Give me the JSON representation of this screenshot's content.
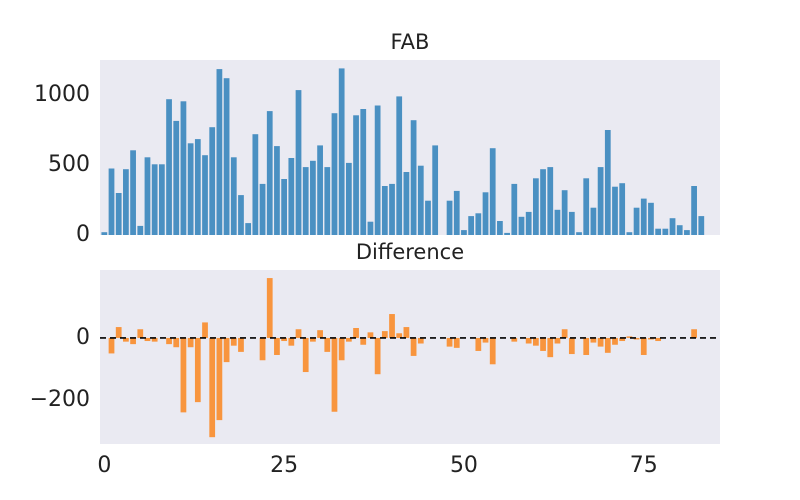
{
  "chart_data": [
    {
      "type": "bar",
      "title": "FAB",
      "color": "#4a90c2",
      "x": [
        0,
        1,
        2,
        3,
        4,
        5,
        6,
        7,
        8,
        9,
        10,
        11,
        12,
        13,
        14,
        15,
        16,
        17,
        18,
        19,
        20,
        21,
        22,
        23,
        24,
        25,
        26,
        27,
        28,
        29,
        30,
        31,
        32,
        33,
        34,
        35,
        36,
        37,
        38,
        39,
        40,
        41,
        42,
        43,
        44,
        45,
        46,
        47,
        48,
        49,
        50,
        51,
        52,
        53,
        54,
        55,
        56,
        57,
        58,
        59,
        60,
        61,
        62,
        63,
        64,
        65,
        66,
        67,
        68,
        69,
        70,
        71,
        72,
        73,
        74,
        75,
        76,
        77,
        78,
        79,
        80,
        81,
        82,
        83
      ],
      "values": [
        20,
        475,
        300,
        470,
        605,
        65,
        555,
        505,
        505,
        970,
        815,
        955,
        655,
        685,
        570,
        770,
        1185,
        1120,
        555,
        285,
        85,
        720,
        365,
        885,
        635,
        400,
        550,
        1035,
        485,
        530,
        640,
        485,
        870,
        1190,
        515,
        855,
        900,
        95,
        925,
        350,
        365,
        990,
        450,
        820,
        495,
        245,
        640,
        0,
        245,
        315,
        35,
        135,
        155,
        305,
        620,
        100,
        15,
        365,
        130,
        165,
        405,
        470,
        485,
        180,
        320,
        165,
        20,
        405,
        195,
        485,
        750,
        345,
        370,
        20,
        195,
        260,
        230,
        45,
        45,
        120,
        70,
        35,
        350,
        135
      ],
      "xlim": [
        -0.6,
        85.6
      ],
      "ylim": [
        0,
        1250
      ],
      "yticks": [
        0,
        500,
        1000
      ]
    },
    {
      "type": "bar",
      "title": "Difference",
      "color": "#f8953e",
      "hline": 0,
      "x": [
        0,
        1,
        2,
        3,
        4,
        5,
        6,
        7,
        8,
        9,
        10,
        11,
        12,
        13,
        14,
        15,
        16,
        17,
        18,
        19,
        20,
        21,
        22,
        23,
        24,
        25,
        26,
        27,
        28,
        29,
        30,
        31,
        32,
        33,
        34,
        35,
        36,
        37,
        38,
        39,
        40,
        41,
        42,
        43,
        44,
        45,
        46,
        47,
        48,
        49,
        50,
        51,
        52,
        53,
        54,
        55,
        56,
        57,
        58,
        59,
        60,
        61,
        62,
        63,
        64,
        65,
        66,
        67,
        68,
        69,
        70,
        71,
        72,
        73,
        74,
        75,
        76,
        77,
        78,
        79,
        80,
        81,
        82,
        83
      ],
      "values": [
        0,
        -50,
        35,
        -12,
        -20,
        28,
        -10,
        -12,
        0,
        -20,
        -30,
        -240,
        -30,
        -207,
        50,
        -320,
        -265,
        -78,
        -25,
        -45,
        0,
        0,
        -72,
        193,
        -55,
        -10,
        -25,
        28,
        -110,
        -12,
        25,
        -45,
        -238,
        -72,
        -12,
        32,
        -22,
        18,
        -117,
        22,
        77,
        15,
        35,
        -58,
        -18,
        0,
        0,
        0,
        -28,
        -32,
        0,
        0,
        -42,
        -15,
        -85,
        0,
        0,
        -12,
        0,
        -18,
        -25,
        -42,
        -62,
        -18,
        28,
        -52,
        0,
        -55,
        -15,
        -28,
        -48,
        -22,
        -10,
        5,
        -5,
        -55,
        -5,
        -10,
        0,
        0,
        0,
        0,
        28,
        0
      ],
      "xlim": [
        -0.6,
        85.6
      ],
      "ylim": [
        -342,
        219
      ],
      "yticks": [
        {
          "value": -200,
          "label": "−200"
        },
        0
      ],
      "xticks": [
        0,
        25,
        50,
        75
      ]
    }
  ]
}
